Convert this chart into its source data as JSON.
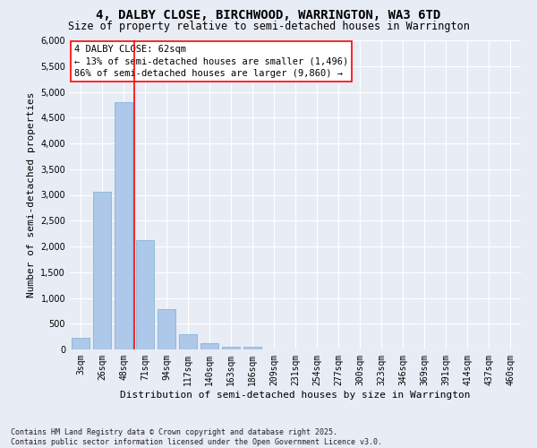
{
  "title": "4, DALBY CLOSE, BIRCHWOOD, WARRINGTON, WA3 6TD",
  "subtitle": "Size of property relative to semi-detached houses in Warrington",
  "xlabel": "Distribution of semi-detached houses by size in Warrington",
  "ylabel": "Number of semi-detached properties",
  "footer": "Contains HM Land Registry data © Crown copyright and database right 2025.\nContains public sector information licensed under the Open Government Licence v3.0.",
  "categories": [
    "3sqm",
    "26sqm",
    "48sqm",
    "71sqm",
    "94sqm",
    "117sqm",
    "140sqm",
    "163sqm",
    "186sqm",
    "209sqm",
    "231sqm",
    "254sqm",
    "277sqm",
    "300sqm",
    "323sqm",
    "346sqm",
    "369sqm",
    "391sqm",
    "414sqm",
    "437sqm",
    "460sqm"
  ],
  "values": [
    230,
    3060,
    4800,
    2130,
    790,
    300,
    120,
    60,
    50,
    0,
    0,
    0,
    0,
    0,
    0,
    0,
    0,
    0,
    0,
    0,
    0
  ],
  "bar_color": "#adc8e8",
  "bar_edge_color": "#7aadd4",
  "vline_position": 2.5,
  "vline_color": "red",
  "annotation_text": "4 DALBY CLOSE: 62sqm\n← 13% of semi-detached houses are smaller (1,496)\n86% of semi-detached houses are larger (9,860) →",
  "ylim": [
    0,
    6000
  ],
  "yticks": [
    0,
    500,
    1000,
    1500,
    2000,
    2500,
    3000,
    3500,
    4000,
    4500,
    5000,
    5500,
    6000
  ],
  "background_color": "#e8ecf5",
  "plot_bg_color": "#e8ecf5",
  "grid_color": "#ffffff",
  "title_fontsize": 10,
  "subtitle_fontsize": 8.5,
  "label_fontsize": 8,
  "tick_fontsize": 7,
  "footer_fontsize": 6
}
